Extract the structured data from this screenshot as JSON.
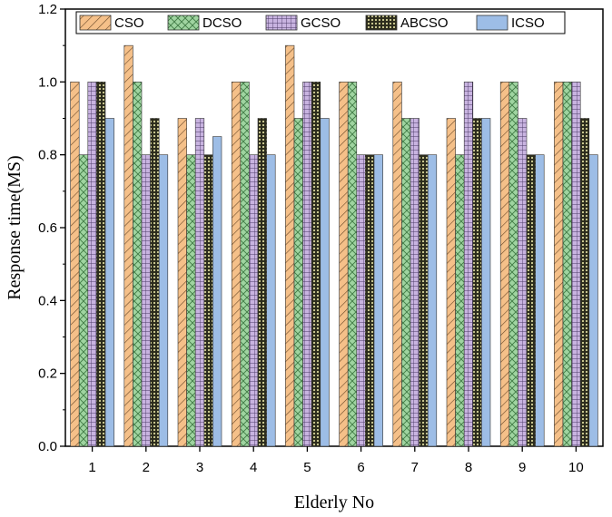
{
  "chart_data": {
    "type": "bar",
    "title": "",
    "xlabel": "Elderly No",
    "ylabel": "Response time(MS)",
    "ylim": [
      0,
      1.2
    ],
    "yticks": [
      "0.0",
      "0.2",
      "0.4",
      "0.6",
      "0.8",
      "1.0",
      "1.2"
    ],
    "categories": [
      "1",
      "2",
      "3",
      "4",
      "5",
      "6",
      "7",
      "8",
      "9",
      "10"
    ],
    "series": [
      {
        "name": "CSO",
        "color": "#f5c089",
        "pattern": "diagonal",
        "values": [
          1.0,
          1.1,
          0.9,
          1.0,
          1.1,
          1.0,
          1.0,
          0.9,
          1.0,
          1.0
        ]
      },
      {
        "name": "DCSO",
        "color": "#9fd4a0",
        "pattern": "crosshatch",
        "values": [
          0.8,
          1.0,
          0.8,
          1.0,
          0.9,
          1.0,
          0.9,
          0.8,
          1.0,
          1.0
        ]
      },
      {
        "name": "GCSO",
        "color": "#c8b3e0",
        "pattern": "grid",
        "values": [
          1.0,
          0.8,
          0.9,
          0.8,
          1.0,
          0.8,
          0.9,
          1.0,
          0.9,
          1.0
        ]
      },
      {
        "name": "ABCSO",
        "color": "#8a8a5a",
        "pattern": "dots",
        "values": [
          1.0,
          0.9,
          0.8,
          0.9,
          1.0,
          0.8,
          0.8,
          0.9,
          0.8,
          0.9
        ]
      },
      {
        "name": "ICSO",
        "color": "#9dbde6",
        "pattern": "solid",
        "values": [
          0.9,
          0.8,
          0.85,
          0.8,
          0.9,
          0.8,
          0.8,
          0.9,
          0.8,
          0.8
        ]
      }
    ],
    "legend_position": "top"
  }
}
